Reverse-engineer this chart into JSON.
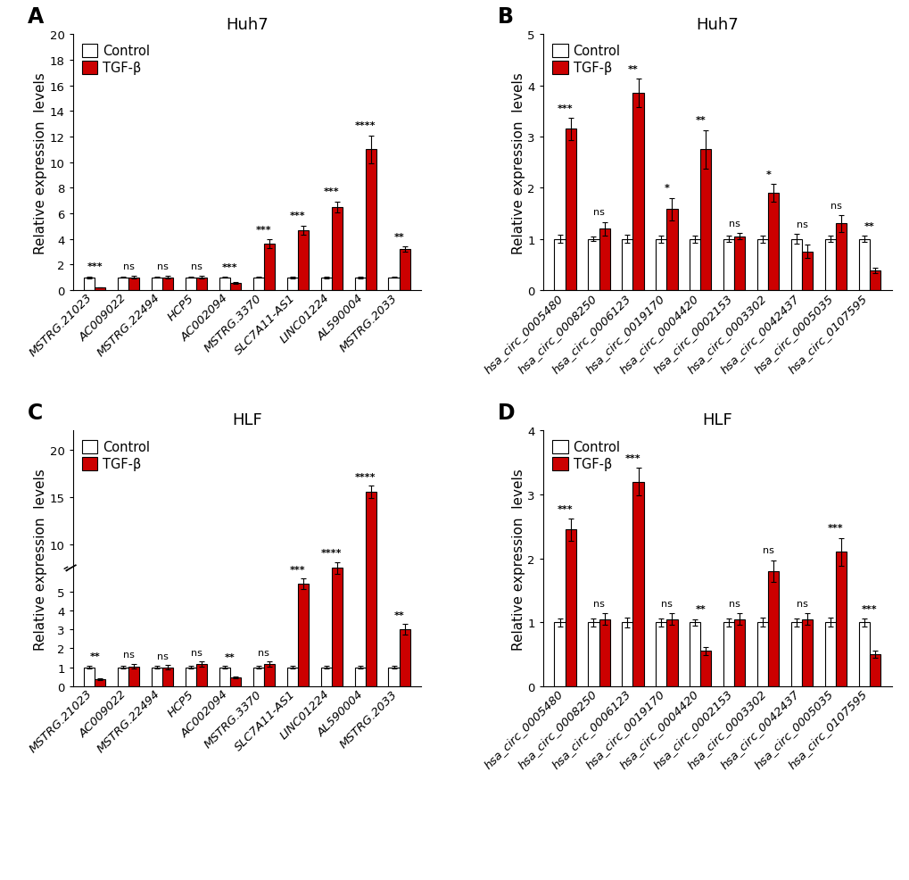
{
  "panel_A": {
    "title": "Huh7",
    "label": "A",
    "ylabel": "Relative expression  levels",
    "ylim": [
      0,
      20
    ],
    "yticks": [
      0,
      2,
      4,
      6,
      8,
      10,
      12,
      14,
      16,
      18,
      20
    ],
    "ytick_labels": [
      "0",
      "2",
      "4",
      "6",
      "8",
      "10",
      "12",
      "14",
      "16",
      "18",
      "20"
    ],
    "broken_axis": false,
    "categories": [
      "MSTRG.21023",
      "AC009022",
      "MSTRG.22494",
      "HCP5",
      "AC002094",
      "MSTRG.3370",
      "SLC7A11-AS1",
      "LINC01224",
      "AL590004",
      "MSTRG.2033"
    ],
    "control_vals": [
      1.0,
      1.0,
      1.0,
      1.0,
      1.0,
      1.0,
      1.0,
      1.0,
      1.0,
      1.0
    ],
    "tgfb_vals": [
      0.2,
      1.0,
      1.0,
      1.0,
      0.55,
      3.6,
      4.7,
      6.5,
      11.0,
      3.2
    ],
    "control_err": [
      0.07,
      0.05,
      0.05,
      0.05,
      0.05,
      0.05,
      0.07,
      0.07,
      0.07,
      0.06
    ],
    "tgfb_err": [
      0.03,
      0.1,
      0.12,
      0.1,
      0.05,
      0.35,
      0.35,
      0.42,
      1.1,
      0.22
    ],
    "significance": [
      "***",
      "ns",
      "ns",
      "ns",
      "***",
      "***",
      "***",
      "***",
      "****",
      "**"
    ]
  },
  "panel_B": {
    "title": "Huh7",
    "label": "B",
    "ylabel": "Relative expression  levels",
    "ylim": [
      0,
      5
    ],
    "yticks": [
      0,
      1,
      2,
      3,
      4,
      5
    ],
    "ytick_labels": [
      "0",
      "1",
      "2",
      "3",
      "4",
      "5"
    ],
    "broken_axis": false,
    "categories": [
      "hsa_circ_0005480",
      "hsa_circ_0008250",
      "hsa_circ_0006123",
      "hsa_circ_0019170",
      "hsa_circ_0004420",
      "hsa_circ_0002153",
      "hsa_circ_0003302",
      "hsa_circ_0042437",
      "hsa_circ_0005035",
      "hsa_circ_0107595"
    ],
    "control_vals": [
      1.0,
      1.0,
      1.0,
      1.0,
      1.0,
      1.0,
      1.0,
      1.0,
      1.0,
      1.0
    ],
    "tgfb_vals": [
      3.15,
      1.2,
      3.85,
      1.58,
      2.75,
      1.05,
      1.9,
      0.75,
      1.3,
      0.38
    ],
    "control_err": [
      0.08,
      0.05,
      0.08,
      0.07,
      0.07,
      0.06,
      0.07,
      0.1,
      0.06,
      0.06
    ],
    "tgfb_err": [
      0.22,
      0.13,
      0.28,
      0.22,
      0.38,
      0.06,
      0.17,
      0.13,
      0.16,
      0.05
    ],
    "significance": [
      "***",
      "ns",
      "**",
      "*",
      "**",
      "ns",
      "*",
      "ns",
      "ns",
      "**"
    ]
  },
  "panel_C": {
    "title": "HLF",
    "label": "C",
    "ylabel": "Relative expression  levels",
    "ylim": [
      0,
      20
    ],
    "yticks": [
      0,
      1,
      2,
      3,
      4,
      5,
      10,
      15,
      20
    ],
    "ytick_labels": [
      "0",
      "1",
      "2",
      "3",
      "4",
      "5",
      "10",
      "15",
      "20"
    ],
    "broken_axis": true,
    "break_positions": [
      [
        5,
        10
      ]
    ],
    "categories": [
      "MSTRG.21023",
      "AC009022",
      "MSTRG.22494",
      "HCP5",
      "AC002094",
      "MSTRG.3370",
      "SLC7A11-AS1",
      "LINC01224",
      "AL590004",
      "MSTRG.2033"
    ],
    "control_vals": [
      1.0,
      1.0,
      1.0,
      1.0,
      1.0,
      1.0,
      1.0,
      1.0,
      1.0,
      1.0
    ],
    "tgfb_vals": [
      0.35,
      1.05,
      1.0,
      1.15,
      0.45,
      1.15,
      5.8,
      7.5,
      15.5,
      3.0
    ],
    "control_err": [
      0.07,
      0.08,
      0.07,
      0.07,
      0.06,
      0.07,
      0.07,
      0.08,
      0.08,
      0.08
    ],
    "tgfb_err": [
      0.05,
      0.12,
      0.11,
      0.14,
      0.05,
      0.14,
      0.55,
      0.6,
      0.65,
      0.28
    ],
    "significance": [
      "**",
      "ns",
      "ns",
      "ns",
      "**",
      "ns",
      "***",
      "****",
      "****",
      "**"
    ]
  },
  "panel_D": {
    "title": "HLF",
    "label": "D",
    "ylabel": "Relative expression  levels",
    "ylim": [
      0,
      4
    ],
    "yticks": [
      0,
      1,
      2,
      3,
      4
    ],
    "ytick_labels": [
      "0",
      "1",
      "2",
      "3",
      "4"
    ],
    "broken_axis": false,
    "categories": [
      "hsa_circ_0005480",
      "hsa_circ_0008250",
      "hsa_circ_0006123",
      "hsa_circ_0019170",
      "hsa_circ_0004420",
      "hsa_circ_0002153",
      "hsa_circ_0003302",
      "hsa_circ_0042437",
      "hsa_circ_0005035",
      "hsa_circ_0107595"
    ],
    "control_vals": [
      1.0,
      1.0,
      1.0,
      1.0,
      1.0,
      1.0,
      1.0,
      1.0,
      1.0,
      1.0
    ],
    "tgfb_vals": [
      2.45,
      1.05,
      3.2,
      1.05,
      0.55,
      1.05,
      1.8,
      1.05,
      2.1,
      0.5
    ],
    "control_err": [
      0.06,
      0.06,
      0.08,
      0.06,
      0.05,
      0.06,
      0.07,
      0.06,
      0.07,
      0.06
    ],
    "tgfb_err": [
      0.17,
      0.09,
      0.22,
      0.09,
      0.06,
      0.09,
      0.17,
      0.09,
      0.22,
      0.06
    ],
    "significance": [
      "***",
      "ns",
      "***",
      "ns",
      "**",
      "ns",
      "ns",
      "ns",
      "***",
      "***"
    ]
  },
  "control_color": "#ffffff",
  "tgfb_color": "#cc0000",
  "bar_edge_color": "#000000",
  "error_color": "#000000",
  "bar_width": 0.32,
  "legend_fontsize": 10.5,
  "tick_fontsize": 9.5,
  "label_fontsize": 11,
  "title_fontsize": 13,
  "sig_fontsize": 8,
  "panel_label_fontsize": 17
}
